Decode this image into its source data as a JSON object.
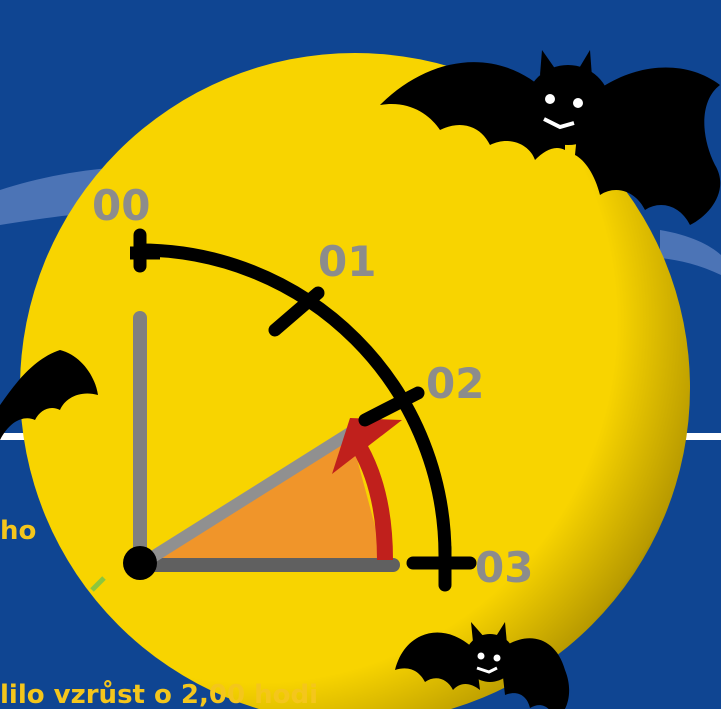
{
  "colors": {
    "background": "#0f4592",
    "moon": "#f8d400",
    "arc": "#000000",
    "radius_lines": "#808080",
    "wedge": "#f0952a",
    "arrow": "#c0201c",
    "label_text": "#8c8c8c",
    "caption_text": "#f4c61c"
  },
  "dial": {
    "labels": [
      "00",
      "01",
      "02",
      "03"
    ]
  },
  "captions": {
    "left_fragment": "ho",
    "bottom_fragment": "lilo vzrůst o 2,00 hodi"
  },
  "icons": [
    "bat-icon",
    "bat-icon",
    "bat-icon"
  ]
}
